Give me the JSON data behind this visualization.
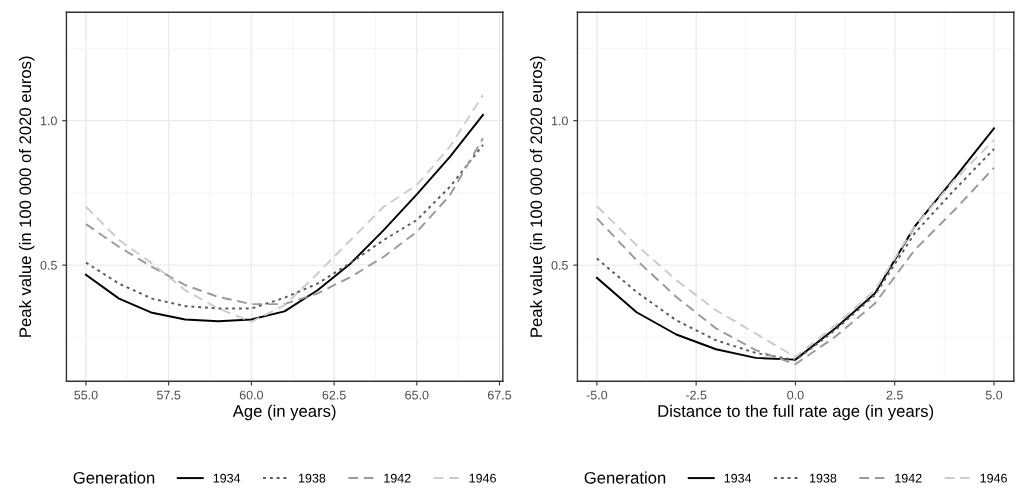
{
  "chart_data": [
    {
      "type": "line",
      "xlabel": "Age (in years)",
      "ylabel": "Peak value (in 100 000 of 2020 euros)",
      "legend_title": "Generation",
      "legend": "bottom",
      "grid": true,
      "marker": "none",
      "x": [
        55,
        56,
        57,
        58,
        59,
        60,
        61,
        62,
        63,
        64,
        65,
        66,
        67
      ],
      "xlim": [
        54.41,
        67.6
      ],
      "xticks": [
        {
          "value": 55,
          "label": "55.0"
        },
        57.5,
        {
          "value": 60,
          "label": "60.0"
        },
        62.5,
        {
          "value": 65,
          "label": "65.0"
        },
        67.5
      ],
      "ylim": [
        0.098,
        1.375
      ],
      "yticks": [
        0.5,
        {
          "value": 1,
          "label": "1.0"
        }
      ],
      "series": [
        {
          "name": "1934",
          "color": "#000000",
          "line_style": "solid",
          "values": [
            0.467,
            0.384,
            0.335,
            0.312,
            0.306,
            0.312,
            0.34,
            0.413,
            0.506,
            0.621,
            0.745,
            0.875,
            1.02
          ]
        },
        {
          "name": "1938",
          "color": "#5a5a5a",
          "line_style": "dotted",
          "values": [
            0.509,
            0.436,
            0.384,
            0.358,
            0.35,
            0.35,
            0.387,
            0.436,
            0.508,
            0.587,
            0.656,
            0.771,
            0.916
          ]
        },
        {
          "name": "1942",
          "color": "#9a9a9a",
          "line_style": "dashed",
          "values": [
            0.642,
            0.563,
            0.494,
            0.431,
            0.39,
            0.365,
            0.365,
            0.402,
            0.459,
            0.529,
            0.615,
            0.742,
            0.939
          ]
        },
        {
          "name": "1946",
          "color": "#cccccc",
          "line_style": "dashed",
          "values": [
            0.702,
            0.587,
            0.506,
            0.413,
            0.35,
            0.304,
            0.361,
            0.471,
            0.587,
            0.702,
            0.777,
            0.91,
            1.089
          ]
        }
      ]
    },
    {
      "type": "line",
      "xlabel": "Distance to the full rate age (in years)",
      "ylabel": "Peak value (in 100 000 of 2020 euros)",
      "legend_title": "Generation",
      "legend": "bottom",
      "grid": true,
      "marker": "none",
      "x": [
        -5,
        -4,
        -3,
        -2,
        -1,
        0,
        1,
        2,
        3,
        4,
        5
      ],
      "xlim": [
        -5.49,
        5.5
      ],
      "xticks": [
        {
          "value": -5,
          "label": "-5.0"
        },
        -2.5,
        {
          "value": 0,
          "label": "0.0"
        },
        2.5,
        {
          "value": 5,
          "label": "5.0"
        }
      ],
      "ylim": [
        0.098,
        1.375
      ],
      "yticks": [
        0.5,
        {
          "value": 1,
          "label": "1.0"
        }
      ],
      "series": [
        {
          "name": "1934",
          "color": "#000000",
          "line_style": "solid",
          "values": [
            0.456,
            0.337,
            0.26,
            0.209,
            0.179,
            0.173,
            0.281,
            0.402,
            0.633,
            0.8,
            0.973
          ]
        },
        {
          "name": "1938",
          "color": "#5a5a5a",
          "line_style": "dotted",
          "values": [
            0.523,
            0.407,
            0.309,
            0.24,
            0.196,
            0.171,
            0.275,
            0.396,
            0.61,
            0.76,
            0.902
          ]
        },
        {
          "name": "1942",
          "color": "#9a9a9a",
          "line_style": "dashed",
          "values": [
            0.662,
            0.517,
            0.39,
            0.281,
            0.206,
            0.157,
            0.252,
            0.367,
            0.552,
            0.69,
            0.837
          ]
        },
        {
          "name": "1946",
          "color": "#cccccc",
          "line_style": "dashed",
          "values": [
            0.704,
            0.569,
            0.448,
            0.344,
            0.263,
            0.182,
            0.292,
            0.413,
            0.633,
            0.794,
            0.933
          ]
        }
      ]
    }
  ]
}
